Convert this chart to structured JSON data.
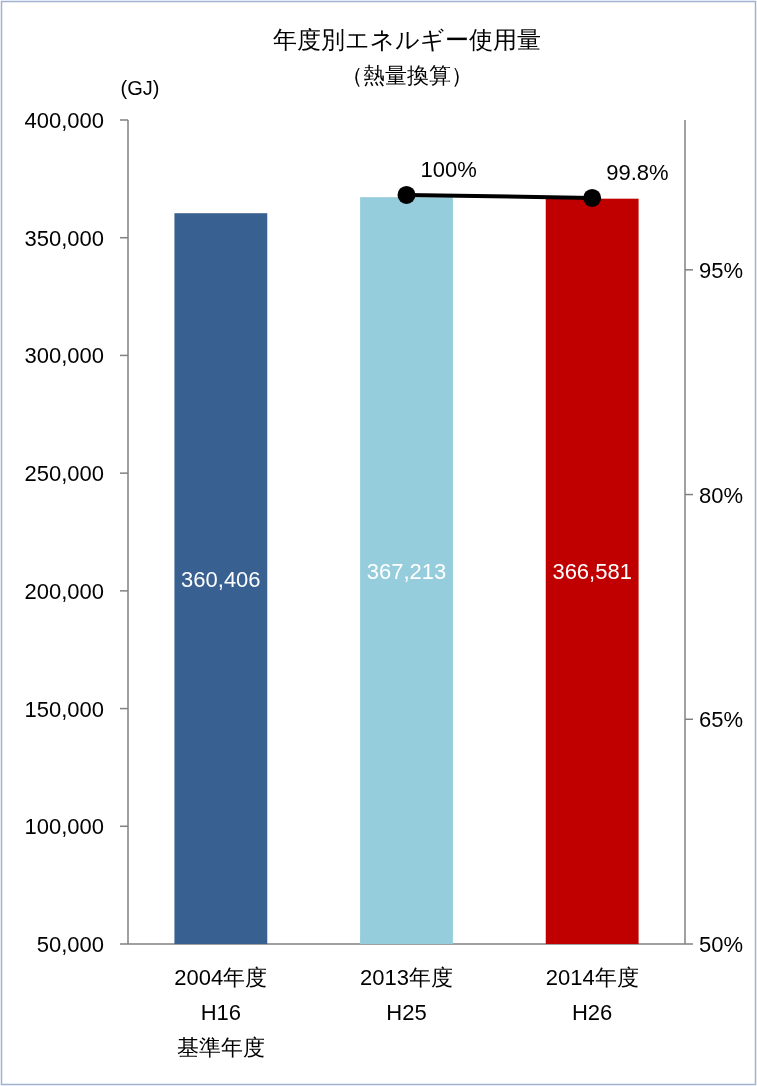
{
  "chart_data": {
    "type": "bar",
    "title": "年度別エネルギー使用量",
    "subtitle": "（熱量換算）",
    "ylabel": "(GJ)",
    "categories": [
      "2004年度\nH16\n基準年度",
      "2013年度\nH25",
      "2014年度\nH26"
    ],
    "series": [
      {
        "colors": [
          "#386090",
          "#96cddc",
          "#c00000"
        ],
        "values": [
          360406,
          367213,
          366581
        ],
        "value_labels": [
          "360,406",
          "367,213",
          "366,581"
        ]
      },
      {
        "type": "line",
        "axis": "y2",
        "color": "#000000",
        "marker": "circle",
        "values": [
          null,
          100,
          99.8
        ],
        "value_labels": [
          null,
          "100%",
          "99.8%"
        ]
      }
    ],
    "ylim": [
      50000,
      400000
    ],
    "yticks": [
      {
        "value": 50000,
        "label": "50,000"
      },
      {
        "value": 100000,
        "label": "100,000"
      },
      {
        "value": 150000,
        "label": "150,000"
      },
      {
        "value": 200000,
        "label": "200,000"
      },
      {
        "value": 250000,
        "label": "250,000"
      },
      {
        "value": 300000,
        "label": "300,000"
      },
      {
        "value": 350000,
        "label": "350,000"
      },
      {
        "value": 400000,
        "label": "400,000"
      }
    ],
    "y2lim": [
      50,
      105
    ],
    "y2ticks": [
      {
        "value": 50,
        "label": "50%"
      },
      {
        "value": 65,
        "label": "65%"
      },
      {
        "value": 80,
        "label": "80%"
      },
      {
        "value": 95,
        "label": "95%"
      }
    ],
    "grid": false
  }
}
